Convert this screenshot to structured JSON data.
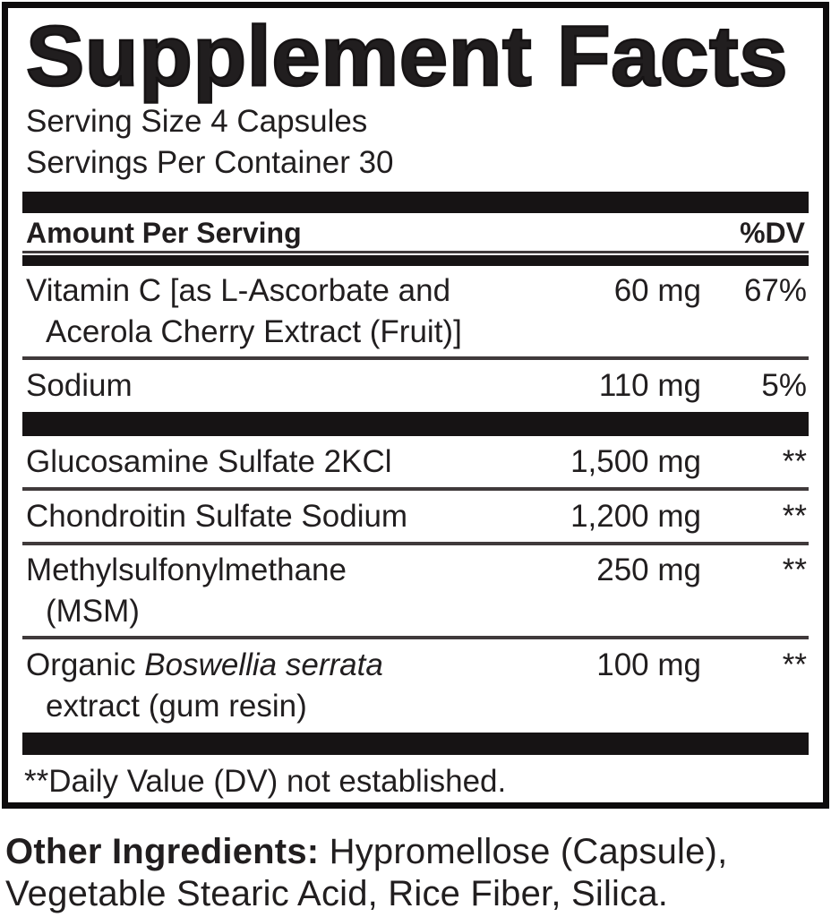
{
  "title": "Supplement Facts",
  "serving_info": {
    "line1": "Serving Size 4 Capsules",
    "line2": "Servings Per Container 30"
  },
  "columns": {
    "amount_header": "Amount Per Serving",
    "dv_header": "%DV"
  },
  "daily_value_rows": [
    {
      "name_line1": "Vitamin C [as L-Ascorbate and",
      "name_line2": "Acerola Cherry Extract (Fruit)]",
      "amount": "60 mg",
      "dv": "67%"
    },
    {
      "name_line1": "Sodium",
      "amount": "110 mg",
      "dv": "5%"
    }
  ],
  "blend_rows": [
    {
      "name_line1": "Glucosamine Sulfate 2KCl",
      "amount": "1,500 mg",
      "dv": "**"
    },
    {
      "name_line1": "Chondroitin Sulfate Sodium",
      "amount": "1,200 mg",
      "dv": "**"
    },
    {
      "name_line1": "Methylsulfonylmethane",
      "name_line2": "(MSM)",
      "amount": "250 mg",
      "dv": "**"
    },
    {
      "name_prefix": "Organic ",
      "name_italic": "Boswellia serrata",
      "name_line2": "extract (gum resin)",
      "amount": "100 mg",
      "dv": "**"
    }
  ],
  "footnote": "**Daily Value (DV) not established.",
  "other_ingredients": {
    "label": "Other Ingredients:",
    "line1_rest": " Hypromellose (Capsule),",
    "line2": "Vegetable Stearic Acid, Rice Fiber, Silica."
  },
  "colors": {
    "background": "#ffffff",
    "text": "#211e1f",
    "bar": "#161314",
    "hairline": "#403a3b"
  }
}
